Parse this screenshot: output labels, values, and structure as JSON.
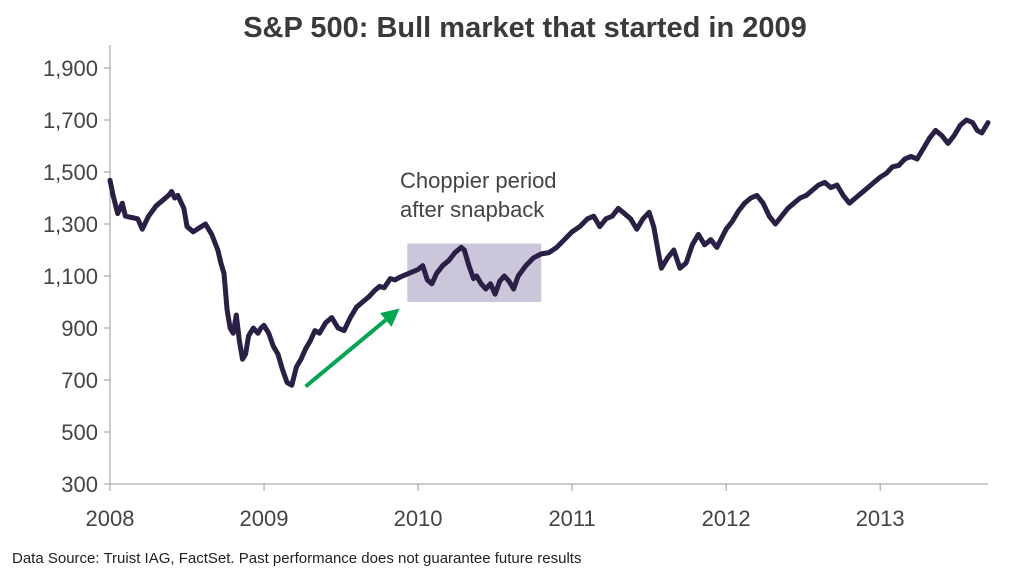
{
  "chart_data": {
    "type": "line",
    "title": "S&P 500: Bull market that started in 2009",
    "xlabel": "",
    "ylabel": "",
    "x_range": [
      2008.0,
      2013.7
    ],
    "ylim": [
      300,
      1950
    ],
    "x_ticks": [
      "2008",
      "2009",
      "2010",
      "2011",
      "2012",
      "2013"
    ],
    "y_ticks": [
      "300",
      "500",
      "700",
      "900",
      "1,100",
      "1,300",
      "1,500",
      "1,700",
      "1,900"
    ],
    "grid": false,
    "line_color": "#2a1f45",
    "series": [
      {
        "name": "",
        "points": [
          [
            2008.0,
            1468
          ],
          [
            2008.02,
            1410
          ],
          [
            2008.05,
            1340
          ],
          [
            2008.08,
            1380
          ],
          [
            2008.1,
            1330
          ],
          [
            2008.14,
            1325
          ],
          [
            2008.18,
            1320
          ],
          [
            2008.21,
            1280
          ],
          [
            2008.25,
            1330
          ],
          [
            2008.3,
            1370
          ],
          [
            2008.35,
            1395
          ],
          [
            2008.38,
            1410
          ],
          [
            2008.4,
            1425
          ],
          [
            2008.42,
            1400
          ],
          [
            2008.44,
            1410
          ],
          [
            2008.48,
            1360
          ],
          [
            2008.5,
            1290
          ],
          [
            2008.54,
            1270
          ],
          [
            2008.58,
            1285
          ],
          [
            2008.62,
            1300
          ],
          [
            2008.66,
            1260
          ],
          [
            2008.7,
            1200
          ],
          [
            2008.72,
            1150
          ],
          [
            2008.74,
            1110
          ],
          [
            2008.76,
            970
          ],
          [
            2008.78,
            900
          ],
          [
            2008.8,
            880
          ],
          [
            2008.82,
            950
          ],
          [
            2008.84,
            850
          ],
          [
            2008.86,
            780
          ],
          [
            2008.88,
            800
          ],
          [
            2008.9,
            870
          ],
          [
            2008.93,
            900
          ],
          [
            2008.96,
            880
          ],
          [
            2008.98,
            900
          ],
          [
            2009.0,
            910
          ],
          [
            2009.03,
            880
          ],
          [
            2009.06,
            830
          ],
          [
            2009.09,
            800
          ],
          [
            2009.12,
            740
          ],
          [
            2009.15,
            690
          ],
          [
            2009.18,
            680
          ],
          [
            2009.21,
            750
          ],
          [
            2009.24,
            780
          ],
          [
            2009.27,
            820
          ],
          [
            2009.3,
            850
          ],
          [
            2009.33,
            890
          ],
          [
            2009.36,
            880
          ],
          [
            2009.4,
            920
          ],
          [
            2009.44,
            940
          ],
          [
            2009.48,
            900
          ],
          [
            2009.52,
            890
          ],
          [
            2009.56,
            940
          ],
          [
            2009.6,
            980
          ],
          [
            2009.64,
            1000
          ],
          [
            2009.68,
            1020
          ],
          [
            2009.72,
            1045
          ],
          [
            2009.75,
            1060
          ],
          [
            2009.78,
            1055
          ],
          [
            2009.82,
            1090
          ],
          [
            2009.85,
            1085
          ],
          [
            2009.88,
            1095
          ],
          [
            2009.92,
            1105
          ],
          [
            2009.96,
            1115
          ],
          [
            2010.0,
            1125
          ],
          [
            2010.03,
            1140
          ],
          [
            2010.06,
            1085
          ],
          [
            2010.09,
            1070
          ],
          [
            2010.12,
            1110
          ],
          [
            2010.16,
            1140
          ],
          [
            2010.2,
            1160
          ],
          [
            2010.24,
            1190
          ],
          [
            2010.28,
            1210
          ],
          [
            2010.3,
            1200
          ],
          [
            2010.33,
            1140
          ],
          [
            2010.36,
            1090
          ],
          [
            2010.38,
            1100
          ],
          [
            2010.41,
            1070
          ],
          [
            2010.44,
            1050
          ],
          [
            2010.47,
            1070
          ],
          [
            2010.5,
            1030
          ],
          [
            2010.53,
            1080
          ],
          [
            2010.56,
            1100
          ],
          [
            2010.59,
            1080
          ],
          [
            2010.62,
            1050
          ],
          [
            2010.65,
            1100
          ],
          [
            2010.7,
            1140
          ],
          [
            2010.75,
            1170
          ],
          [
            2010.8,
            1185
          ],
          [
            2010.85,
            1190
          ],
          [
            2010.9,
            1210
          ],
          [
            2010.95,
            1240
          ],
          [
            2011.0,
            1270
          ],
          [
            2011.05,
            1290
          ],
          [
            2011.1,
            1320
          ],
          [
            2011.14,
            1330
          ],
          [
            2011.18,
            1290
          ],
          [
            2011.22,
            1320
          ],
          [
            2011.26,
            1330
          ],
          [
            2011.3,
            1360
          ],
          [
            2011.34,
            1340
          ],
          [
            2011.38,
            1320
          ],
          [
            2011.42,
            1280
          ],
          [
            2011.46,
            1320
          ],
          [
            2011.5,
            1345
          ],
          [
            2011.53,
            1290
          ],
          [
            2011.56,
            1190
          ],
          [
            2011.58,
            1130
          ],
          [
            2011.62,
            1170
          ],
          [
            2011.66,
            1200
          ],
          [
            2011.7,
            1130
          ],
          [
            2011.74,
            1150
          ],
          [
            2011.78,
            1220
          ],
          [
            2011.82,
            1260
          ],
          [
            2011.86,
            1220
          ],
          [
            2011.9,
            1240
          ],
          [
            2011.94,
            1210
          ],
          [
            2012.0,
            1280
          ],
          [
            2012.04,
            1310
          ],
          [
            2012.08,
            1350
          ],
          [
            2012.12,
            1380
          ],
          [
            2012.16,
            1400
          ],
          [
            2012.2,
            1410
          ],
          [
            2012.24,
            1380
          ],
          [
            2012.28,
            1330
          ],
          [
            2012.32,
            1300
          ],
          [
            2012.36,
            1330
          ],
          [
            2012.4,
            1360
          ],
          [
            2012.44,
            1380
          ],
          [
            2012.48,
            1400
          ],
          [
            2012.52,
            1410
          ],
          [
            2012.56,
            1430
          ],
          [
            2012.6,
            1450
          ],
          [
            2012.64,
            1460
          ],
          [
            2012.68,
            1440
          ],
          [
            2012.72,
            1450
          ],
          [
            2012.76,
            1410
          ],
          [
            2012.8,
            1380
          ],
          [
            2012.84,
            1400
          ],
          [
            2012.88,
            1420
          ],
          [
            2012.92,
            1440
          ],
          [
            2012.96,
            1460
          ],
          [
            2013.0,
            1480
          ],
          [
            2013.04,
            1495
          ],
          [
            2013.08,
            1520
          ],
          [
            2013.12,
            1525
          ],
          [
            2013.16,
            1550
          ],
          [
            2013.2,
            1560
          ],
          [
            2013.24,
            1550
          ],
          [
            2013.28,
            1590
          ],
          [
            2013.32,
            1630
          ],
          [
            2013.36,
            1660
          ],
          [
            2013.4,
            1640
          ],
          [
            2013.44,
            1610
          ],
          [
            2013.48,
            1640
          ],
          [
            2013.52,
            1680
          ],
          [
            2013.56,
            1700
          ],
          [
            2013.6,
            1690
          ],
          [
            2013.63,
            1660
          ],
          [
            2013.66,
            1650
          ],
          [
            2013.7,
            1690
          ]
        ]
      }
    ],
    "annotations": [
      {
        "text_lines": [
          "Choppier period",
          "after snapback"
        ],
        "box_x": [
          2009.93,
          2010.8
        ],
        "box_y": [
          1000,
          1225
        ],
        "box_color": "#cbc6d9"
      }
    ],
    "arrow": {
      "from": [
        2009.27,
        675
      ],
      "to": [
        2009.88,
        975
      ],
      "color": "#00a651"
    }
  },
  "source_note": "Data Source: Truist IAG, FactSet. Past performance does not guarantee future results"
}
